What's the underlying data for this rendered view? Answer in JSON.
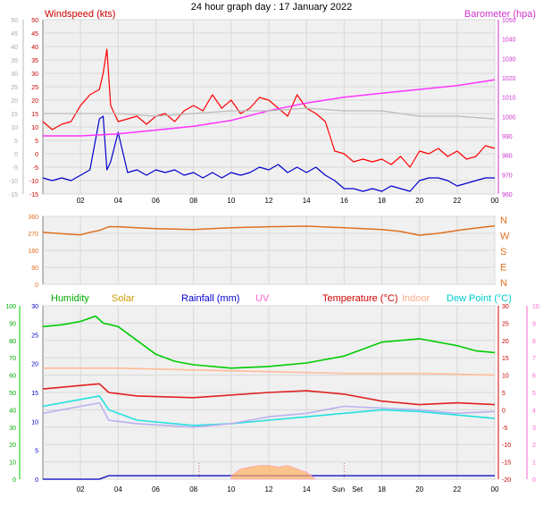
{
  "chart_data": [
    {
      "type": "line",
      "title": "24 hour graph day : 17 January 2022",
      "left_label": "Windspeed (kts)",
      "right_label": "Barometer (hpa)",
      "left_ticks": [
        "50",
        "45",
        "40",
        "35",
        "30",
        "25",
        "20",
        "15",
        "10",
        "5",
        "0",
        "-5",
        "-10",
        "-15"
      ],
      "right_ticks": [
        "1050",
        "1040",
        "1030",
        "1020",
        "1010",
        "1000",
        "990",
        "980",
        "970",
        "960"
      ],
      "x_ticks": [
        "02",
        "04",
        "06",
        "08",
        "10",
        "12",
        "14",
        "16",
        "18",
        "20",
        "22",
        "00"
      ],
      "ylim_left": [
        -15,
        50
      ],
      "ylim_right": [
        960,
        1050
      ],
      "xlim_hours": [
        0,
        24
      ],
      "colors": {
        "gust": "#ff0000",
        "speed": "#0000cc",
        "barometer": "#ff33ff",
        "gray": "#bbbbbb"
      },
      "series": [
        {
          "key": "gust",
          "x": [
            0,
            0.5,
            1,
            1.5,
            2,
            2.5,
            3,
            3.2,
            3.4,
            3.6,
            4,
            4.5,
            5,
            5.5,
            6,
            6.5,
            7,
            7.5,
            8,
            8.5,
            9,
            9.5,
            10,
            10.5,
            11,
            11.5,
            12,
            12.5,
            13,
            13.5,
            14,
            14.5,
            15,
            15.5,
            16,
            16.5,
            17,
            17.5,
            18,
            18.5,
            19,
            19.5,
            20,
            20.5,
            21,
            21.5,
            22,
            22.5,
            23,
            23.5,
            24
          ],
          "y": [
            12,
            9,
            11,
            12,
            18,
            22,
            24,
            30,
            39,
            18,
            12,
            13,
            14,
            11,
            14,
            15,
            12,
            16,
            18,
            16,
            22,
            17,
            20,
            15,
            17,
            21,
            20,
            17,
            14,
            22,
            17,
            15,
            12,
            1,
            0,
            -3,
            -2,
            -3,
            -2,
            -4,
            -1,
            -5,
            1,
            0,
            2,
            -1,
            1,
            -2,
            -1,
            3,
            2
          ]
        },
        {
          "key": "speed",
          "x": [
            0,
            0.5,
            1,
            1.5,
            2,
            2.5,
            3,
            3.2,
            3.4,
            3.6,
            4,
            4.5,
            5,
            5.5,
            6,
            6.5,
            7,
            7.5,
            8,
            8.5,
            9,
            9.5,
            10,
            10.5,
            11,
            11.5,
            12,
            12.5,
            13,
            13.5,
            14,
            14.5,
            15,
            15.5,
            16,
            16.5,
            17,
            17.5,
            18,
            18.5,
            19,
            19.5,
            20,
            20.5,
            21,
            21.5,
            22,
            22.5,
            23,
            23.5,
            24
          ],
          "y": [
            -9,
            -10,
            -9,
            -10,
            -8,
            -6,
            13,
            14,
            -6,
            -3,
            8,
            -7,
            -6,
            -8,
            -6,
            -7,
            -6,
            -8,
            -7,
            -9,
            -7,
            -9,
            -7,
            -8,
            -7,
            -5,
            -6,
            -4,
            -7,
            -5,
            -7,
            -5,
            -8,
            -10,
            -13,
            -13,
            -14,
            -13,
            -14,
            -12,
            -13,
            -14,
            -10,
            -9,
            -9,
            -10,
            -12,
            -11,
            -10,
            -9,
            -9
          ]
        },
        {
          "key": "barometer",
          "x": [
            0,
            2,
            4,
            6,
            8,
            10,
            12,
            14,
            16,
            18,
            20,
            22,
            24
          ],
          "y": [
            990,
            990,
            991,
            993,
            995,
            998,
            1003,
            1007,
            1010,
            1012,
            1014,
            1016,
            1019
          ]
        },
        {
          "key": "gray",
          "x": [
            0,
            2,
            4,
            6,
            8,
            10,
            12,
            14,
            16,
            18,
            20,
            22,
            24
          ],
          "y": [
            15,
            15,
            15,
            14,
            15,
            16,
            16,
            17,
            16,
            16,
            14,
            14,
            13
          ]
        }
      ]
    },
    {
      "type": "line",
      "left_ticks": [
        "360",
        "270",
        "180",
        "90",
        "0"
      ],
      "right_labels": [
        "N",
        "W",
        "S",
        "E",
        "N"
      ],
      "ylim": [
        0,
        360
      ],
      "xlim_hours": [
        0,
        24
      ],
      "color": "#e07020",
      "series": [
        {
          "key": "direction",
          "x": [
            0,
            1,
            1.5,
            2,
            2.5,
            3,
            3.5,
            4,
            5,
            6,
            8,
            10,
            12,
            14,
            16,
            18,
            19,
            20,
            21,
            22,
            23,
            24
          ],
          "y": [
            275,
            268,
            265,
            262,
            275,
            285,
            305,
            305,
            300,
            295,
            290,
            300,
            305,
            308,
            300,
            290,
            280,
            260,
            270,
            285,
            298,
            310
          ]
        }
      ]
    },
    {
      "type": "line",
      "labels": {
        "humidity": "Humidity",
        "solar": "Solar",
        "rainfall": "Rainfall (mm)",
        "uv": "UV",
        "temperature": "Temperature (°C)",
        "indoor": "Indoor",
        "dewpoint": "Dew Point (°C)"
      },
      "label_colors": {
        "humidity": "#00aa00",
        "solar": "#cc9900",
        "rainfall": "#0000cc",
        "uv": "#ff66cc",
        "temperature": "#cc0000",
        "indoor": "#ffaa88",
        "dewpoint": "#00cccc"
      },
      "humidity_ticks": [
        "100",
        "90",
        "80",
        "70",
        "60",
        "50",
        "40",
        "30",
        "20",
        "10",
        "0"
      ],
      "rain_ticks": [
        "30",
        "25",
        "20",
        "15",
        "10",
        "5",
        "0"
      ],
      "temp_ticks": [
        "30",
        "25",
        "20",
        "15",
        "10",
        "5",
        "0",
        "-5",
        "-10",
        "-15",
        "-20"
      ],
      "uv_ticks": [
        "10",
        "9",
        "8",
        "7",
        "6",
        "5",
        "4",
        "3",
        "2",
        "1",
        "0"
      ],
      "x_ticks": [
        "02",
        "04",
        "06",
        "08",
        "10",
        "12",
        "14",
        "Sun",
        "Set",
        "18",
        "20",
        "22",
        "00"
      ],
      "ylim_temp": [
        -20,
        30
      ],
      "xlim_hours": [
        0,
        24
      ],
      "series": [
        {
          "key": "humidity_line",
          "unit": "temp_axis",
          "color": "#00cc00",
          "x": [
            0,
            1,
            2,
            2.8,
            3.2,
            4,
            5,
            6,
            7,
            8,
            10,
            12,
            14,
            16,
            17,
            18,
            20,
            22,
            23,
            24
          ],
          "y": [
            24,
            24.5,
            25.5,
            27,
            25,
            24,
            20,
            16,
            14,
            13,
            12,
            12.5,
            13.5,
            15.5,
            17.5,
            19.5,
            20.5,
            18.5,
            17,
            16.5
          ]
        },
        {
          "key": "indoor",
          "color": "#ffbb99",
          "x": [
            0,
            4,
            8,
            12,
            16,
            20,
            24
          ],
          "y": [
            12,
            12,
            11.5,
            11,
            10.5,
            10.5,
            10
          ]
        },
        {
          "key": "temperature",
          "color": "#e02020",
          "x": [
            0,
            1,
            2,
            3,
            3.5,
            5,
            8,
            12,
            14,
            16,
            18,
            20,
            22,
            24
          ],
          "y": [
            6,
            6.5,
            7,
            7.5,
            5,
            4,
            3.5,
            5,
            5.5,
            4.5,
            2.5,
            1.5,
            2,
            1.5
          ]
        },
        {
          "key": "dewpoint",
          "color": "#22e0e0",
          "x": [
            0,
            1,
            2,
            3,
            3.5,
            5,
            8,
            10,
            12,
            14,
            16,
            18,
            20,
            22,
            24
          ],
          "y": [
            1,
            2,
            3,
            4,
            0,
            -3,
            -4.5,
            -4,
            -3,
            -2,
            -1,
            0,
            -0.5,
            -1.5,
            -2.5
          ]
        },
        {
          "key": "lavender",
          "color": "#bbb0ee",
          "x": [
            0,
            1,
            2,
            3,
            3.5,
            5,
            8,
            10,
            12,
            14,
            16,
            18,
            20,
            22,
            24
          ],
          "y": [
            -1,
            0,
            1,
            2,
            -3,
            -4,
            -5,
            -4,
            -2,
            -1,
            1,
            0.5,
            0,
            -1,
            -0.5
          ]
        },
        {
          "key": "rain",
          "color": "#2222cc",
          "x": [
            0,
            2,
            3,
            3.5,
            5,
            24
          ],
          "y": [
            -20,
            -20,
            -20,
            -19,
            -19,
            -19
          ]
        },
        {
          "key": "solar",
          "color": "#ffb060",
          "x": [
            10,
            10.5,
            11,
            11.5,
            12,
            12.5,
            13,
            13.5,
            14,
            14.5
          ],
          "y": [
            -19,
            -17,
            -16.5,
            -16,
            -16,
            -16.5,
            -16,
            -17,
            -18,
            -20
          ]
        }
      ]
    }
  ]
}
